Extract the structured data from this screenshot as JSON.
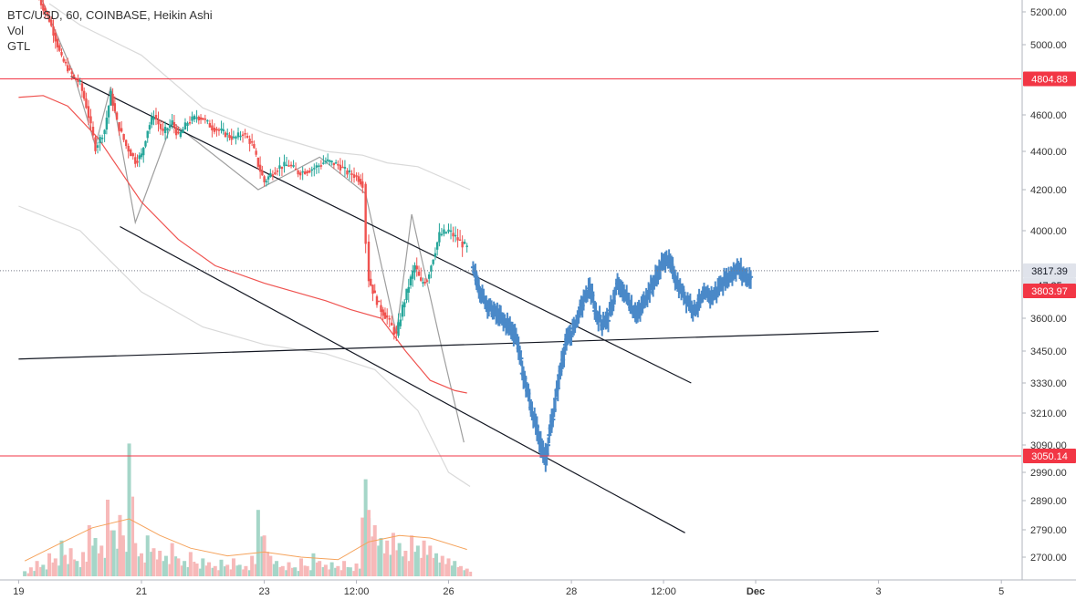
{
  "legend": {
    "symbol_line": "BTC/USD, 60, COINBASE, Heikin Ashi",
    "vol_label": "Vol",
    "gtl_label": "GTL"
  },
  "chart_data": {
    "type": "line",
    "title": "BTC/USD, 60, COINBASE, Heikin Ashi",
    "y_ticks": [
      "5200.00",
      "5000.00",
      "4600.00",
      "4400.00",
      "4200.00",
      "4000.00",
      "3600.00",
      "3450.00",
      "3330.00",
      "3210.00",
      "3090.00",
      "2990.00",
      "2890.00",
      "2790.00",
      "2700.00"
    ],
    "x_ticks": [
      "19",
      "21",
      "23",
      "12:00",
      "26",
      "28",
      "12:00",
      "Dec",
      "3",
      "5"
    ],
    "x_bold_tick": "Dec",
    "price_tags": [
      {
        "label": "4804.88",
        "bg": "#f23645",
        "fg": "#ffffff",
        "kind": "level"
      },
      {
        "label": "3817.39",
        "bg": "#e0e3eb",
        "fg": "#131722",
        "kind": "last"
      },
      {
        "label": "47:35",
        "bg": "#e0e3eb",
        "fg": "#131722",
        "kind": "countdown"
      },
      {
        "label": "3803.97",
        "bg": "#f23645",
        "fg": "#ffffff",
        "kind": "ma"
      },
      {
        "label": "3050.14",
        "bg": "#f23645",
        "fg": "#ffffff",
        "kind": "level"
      }
    ],
    "horizontal_levels": [
      4804.88,
      3050.14
    ],
    "last_price": 3817.39,
    "ma_value": 3803.97,
    "series": [
      {
        "key": "heikin-ashi",
        "style": "candles",
        "up_color": "#26a69a",
        "down_color": "#ef5350",
        "path": [
          [
            19.3,
            5300
          ],
          [
            19.5,
            5150
          ],
          [
            19.7,
            4920
          ],
          [
            19.9,
            4810
          ],
          [
            20.0,
            4780
          ],
          [
            20.1,
            4650
          ],
          [
            20.25,
            4420
          ],
          [
            20.4,
            4520
          ],
          [
            20.5,
            4720
          ],
          [
            20.6,
            4560
          ],
          [
            20.75,
            4430
          ],
          [
            20.9,
            4350
          ],
          [
            21.0,
            4380
          ],
          [
            21.1,
            4520
          ],
          [
            21.2,
            4600
          ],
          [
            21.35,
            4500
          ],
          [
            21.5,
            4560
          ],
          [
            21.6,
            4480
          ],
          [
            21.75,
            4560
          ],
          [
            21.9,
            4590
          ],
          [
            22.0,
            4580
          ],
          [
            22.15,
            4530
          ],
          [
            22.3,
            4510
          ],
          [
            22.5,
            4470
          ],
          [
            22.65,
            4500
          ],
          [
            22.8,
            4440
          ],
          [
            22.9,
            4330
          ],
          [
            23.0,
            4240
          ],
          [
            23.1,
            4280
          ],
          [
            23.25,
            4320
          ],
          [
            23.4,
            4330
          ],
          [
            23.55,
            4290
          ],
          [
            23.7,
            4300
          ],
          [
            23.85,
            4320
          ],
          [
            24.0,
            4350
          ],
          [
            24.2,
            4330
          ],
          [
            24.35,
            4290
          ],
          [
            24.5,
            4270
          ],
          [
            24.6,
            4230
          ],
          [
            24.65,
            3950
          ],
          [
            24.7,
            3780
          ],
          [
            24.8,
            3700
          ],
          [
            24.9,
            3640
          ],
          [
            25.0,
            3600
          ],
          [
            25.15,
            3520
          ],
          [
            25.25,
            3650
          ],
          [
            25.35,
            3750
          ],
          [
            25.45,
            3840
          ],
          [
            25.55,
            3760
          ],
          [
            25.65,
            3780
          ],
          [
            25.75,
            3880
          ],
          [
            25.85,
            3980
          ],
          [
            26.0,
            4000
          ],
          [
            26.15,
            3960
          ],
          [
            26.3,
            3920
          ]
        ]
      },
      {
        "key": "projection",
        "style": "bars",
        "color": "#4a89c8",
        "path": [
          [
            26.4,
            3820
          ],
          [
            26.55,
            3700
          ],
          [
            26.7,
            3640
          ],
          [
            26.85,
            3600
          ],
          [
            27.0,
            3560
          ],
          [
            27.1,
            3520
          ],
          [
            27.2,
            3380
          ],
          [
            27.3,
            3280
          ],
          [
            27.4,
            3180
          ],
          [
            27.5,
            3090
          ],
          [
            27.58,
            3045
          ],
          [
            27.7,
            3200
          ],
          [
            27.8,
            3350
          ],
          [
            27.9,
            3480
          ],
          [
            28.0,
            3530
          ],
          [
            28.08,
            3590
          ],
          [
            28.2,
            3680
          ],
          [
            28.3,
            3740
          ],
          [
            28.4,
            3620
          ],
          [
            28.5,
            3580
          ],
          [
            28.6,
            3600
          ],
          [
            28.75,
            3750
          ],
          [
            28.9,
            3700
          ],
          [
            29.0,
            3640
          ],
          [
            29.1,
            3620
          ],
          [
            29.2,
            3690
          ],
          [
            29.35,
            3770
          ],
          [
            29.45,
            3830
          ],
          [
            29.55,
            3880
          ],
          [
            29.65,
            3820
          ],
          [
            29.75,
            3740
          ],
          [
            29.85,
            3700
          ],
          [
            30.0,
            3640
          ],
          [
            30.1,
            3680
          ],
          [
            30.2,
            3710
          ],
          [
            30.3,
            3700
          ],
          [
            30.45,
            3760
          ],
          [
            30.6,
            3800
          ],
          [
            30.7,
            3830
          ],
          [
            30.8,
            3800
          ],
          [
            30.92,
            3780
          ]
        ]
      },
      {
        "key": "gtl-zigzag",
        "style": "line",
        "color": "#9e9e9e",
        "path": [
          [
            19.35,
            5300
          ],
          [
            19.9,
            4830
          ],
          [
            20.25,
            4430
          ],
          [
            20.5,
            4760
          ],
          [
            20.9,
            4040
          ],
          [
            21.5,
            4560
          ],
          [
            22.9,
            4200
          ],
          [
            23.9,
            4370
          ],
          [
            24.65,
            4180
          ],
          [
            25.15,
            3530
          ],
          [
            25.4,
            4080
          ],
          [
            25.9,
            3450
          ],
          [
            26.25,
            3100
          ]
        ]
      },
      {
        "key": "upper-envelope",
        "style": "line",
        "color": "#d9d9d9",
        "path": [
          [
            19.5,
            5250
          ],
          [
            20.0,
            5120
          ],
          [
            21.0,
            4940
          ],
          [
            22.0,
            4640
          ],
          [
            23.0,
            4500
          ],
          [
            24.0,
            4400
          ],
          [
            24.6,
            4380
          ],
          [
            25.0,
            4340
          ],
          [
            25.5,
            4320
          ],
          [
            26.0,
            4250
          ],
          [
            26.35,
            4200
          ]
        ]
      },
      {
        "key": "lower-envelope",
        "style": "line",
        "color": "#d9d9d9",
        "path": [
          [
            19.0,
            4120
          ],
          [
            20.0,
            4000
          ],
          [
            21.0,
            3720
          ],
          [
            22.0,
            3560
          ],
          [
            23.0,
            3480
          ],
          [
            24.0,
            3440
          ],
          [
            24.8,
            3380
          ],
          [
            25.5,
            3220
          ],
          [
            26.0,
            2990
          ],
          [
            26.35,
            2940
          ]
        ]
      },
      {
        "key": "moving-average",
        "style": "line",
        "color": "#ef5350",
        "path": [
          [
            19.0,
            4700
          ],
          [
            19.4,
            4710
          ],
          [
            19.8,
            4650
          ],
          [
            20.3,
            4470
          ],
          [
            21.0,
            4140
          ],
          [
            21.6,
            3960
          ],
          [
            22.2,
            3840
          ],
          [
            23.0,
            3760
          ],
          [
            24.0,
            3680
          ],
          [
            24.4,
            3640
          ],
          [
            24.9,
            3600
          ],
          [
            25.3,
            3450
          ],
          [
            25.7,
            3340
          ],
          [
            26.1,
            3300
          ],
          [
            26.3,
            3290
          ]
        ]
      }
    ],
    "trendlines": [
      {
        "from": [
          19.85,
          4820
        ],
        "to": [
          29.95,
          3330
        ],
        "color": "#131722"
      },
      {
        "from": [
          20.65,
          4020
        ],
        "to": [
          29.85,
          2780
        ],
        "color": "#131722"
      },
      {
        "from": [
          19.0,
          3420
        ],
        "to": [
          33.0,
          3540
        ],
        "color": "#131722"
      }
    ],
    "volume": {
      "up_color": "#a5d6c8",
      "down_color": "#f7b9b9",
      "ma_color": "#f5a35c",
      "bars": [
        [
          19.1,
          20
        ],
        [
          19.2,
          35
        ],
        [
          19.3,
          60
        ],
        [
          19.4,
          45
        ],
        [
          19.5,
          90
        ],
        [
          19.6,
          70
        ],
        [
          19.7,
          140
        ],
        [
          19.75,
          80
        ],
        [
          19.85,
          110
        ],
        [
          19.95,
          60
        ],
        [
          20.05,
          95
        ],
        [
          20.15,
          200
        ],
        [
          20.25,
          150
        ],
        [
          20.35,
          120
        ],
        [
          20.45,
          300
        ],
        [
          20.55,
          180
        ],
        [
          20.65,
          240
        ],
        [
          20.7,
          160
        ],
        [
          20.8,
          520
        ],
        [
          20.9,
          130
        ],
        [
          21.0,
          90
        ],
        [
          21.1,
          160
        ],
        [
          21.2,
          110
        ],
        [
          21.3,
          100
        ],
        [
          21.4,
          80
        ],
        [
          21.5,
          130
        ],
        [
          21.6,
          70
        ],
        [
          21.7,
          60
        ],
        [
          21.8,
          95
        ],
        [
          21.9,
          50
        ],
        [
          22.0,
          70
        ],
        [
          22.1,
          55
        ],
        [
          22.2,
          40
        ],
        [
          22.3,
          65
        ],
        [
          22.4,
          45
        ],
        [
          22.5,
          70
        ],
        [
          22.6,
          45
        ],
        [
          22.7,
          40
        ],
        [
          22.8,
          80
        ],
        [
          22.9,
          260
        ],
        [
          23.0,
          160
        ],
        [
          23.1,
          80
        ],
        [
          23.2,
          60
        ],
        [
          23.3,
          40
        ],
        [
          23.4,
          55
        ],
        [
          23.5,
          35
        ],
        [
          23.6,
          70
        ],
        [
          23.7,
          40
        ],
        [
          23.8,
          90
        ],
        [
          23.9,
          60
        ],
        [
          24.0,
          45
        ],
        [
          24.1,
          55
        ],
        [
          24.2,
          40
        ],
        [
          24.3,
          60
        ],
        [
          24.4,
          35
        ],
        [
          24.5,
          50
        ],
        [
          24.6,
          230
        ],
        [
          24.65,
          380
        ],
        [
          24.7,
          260
        ],
        [
          24.8,
          200
        ],
        [
          24.9,
          150
        ],
        [
          25.0,
          140
        ],
        [
          25.1,
          170
        ],
        [
          25.2,
          130
        ],
        [
          25.3,
          100
        ],
        [
          25.4,
          160
        ],
        [
          25.5,
          120
        ],
        [
          25.6,
          140
        ],
        [
          25.7,
          120
        ],
        [
          25.8,
          90
        ],
        [
          25.9,
          80
        ],
        [
          26.0,
          70
        ],
        [
          26.1,
          60
        ],
        [
          26.2,
          40
        ],
        [
          26.3,
          30
        ]
      ],
      "ma": [
        [
          19.1,
          60
        ],
        [
          19.6,
          120
        ],
        [
          20.2,
          190
        ],
        [
          20.8,
          225
        ],
        [
          21.3,
          160
        ],
        [
          21.8,
          110
        ],
        [
          22.4,
          80
        ],
        [
          23.0,
          95
        ],
        [
          23.6,
          75
        ],
        [
          24.2,
          65
        ],
        [
          24.7,
          135
        ],
        [
          25.2,
          160
        ],
        [
          25.7,
          150
        ],
        [
          26.3,
          105
        ]
      ]
    },
    "ylim": [
      2650,
      5300
    ],
    "xlim": [
      19.0,
      33.0
    ]
  }
}
